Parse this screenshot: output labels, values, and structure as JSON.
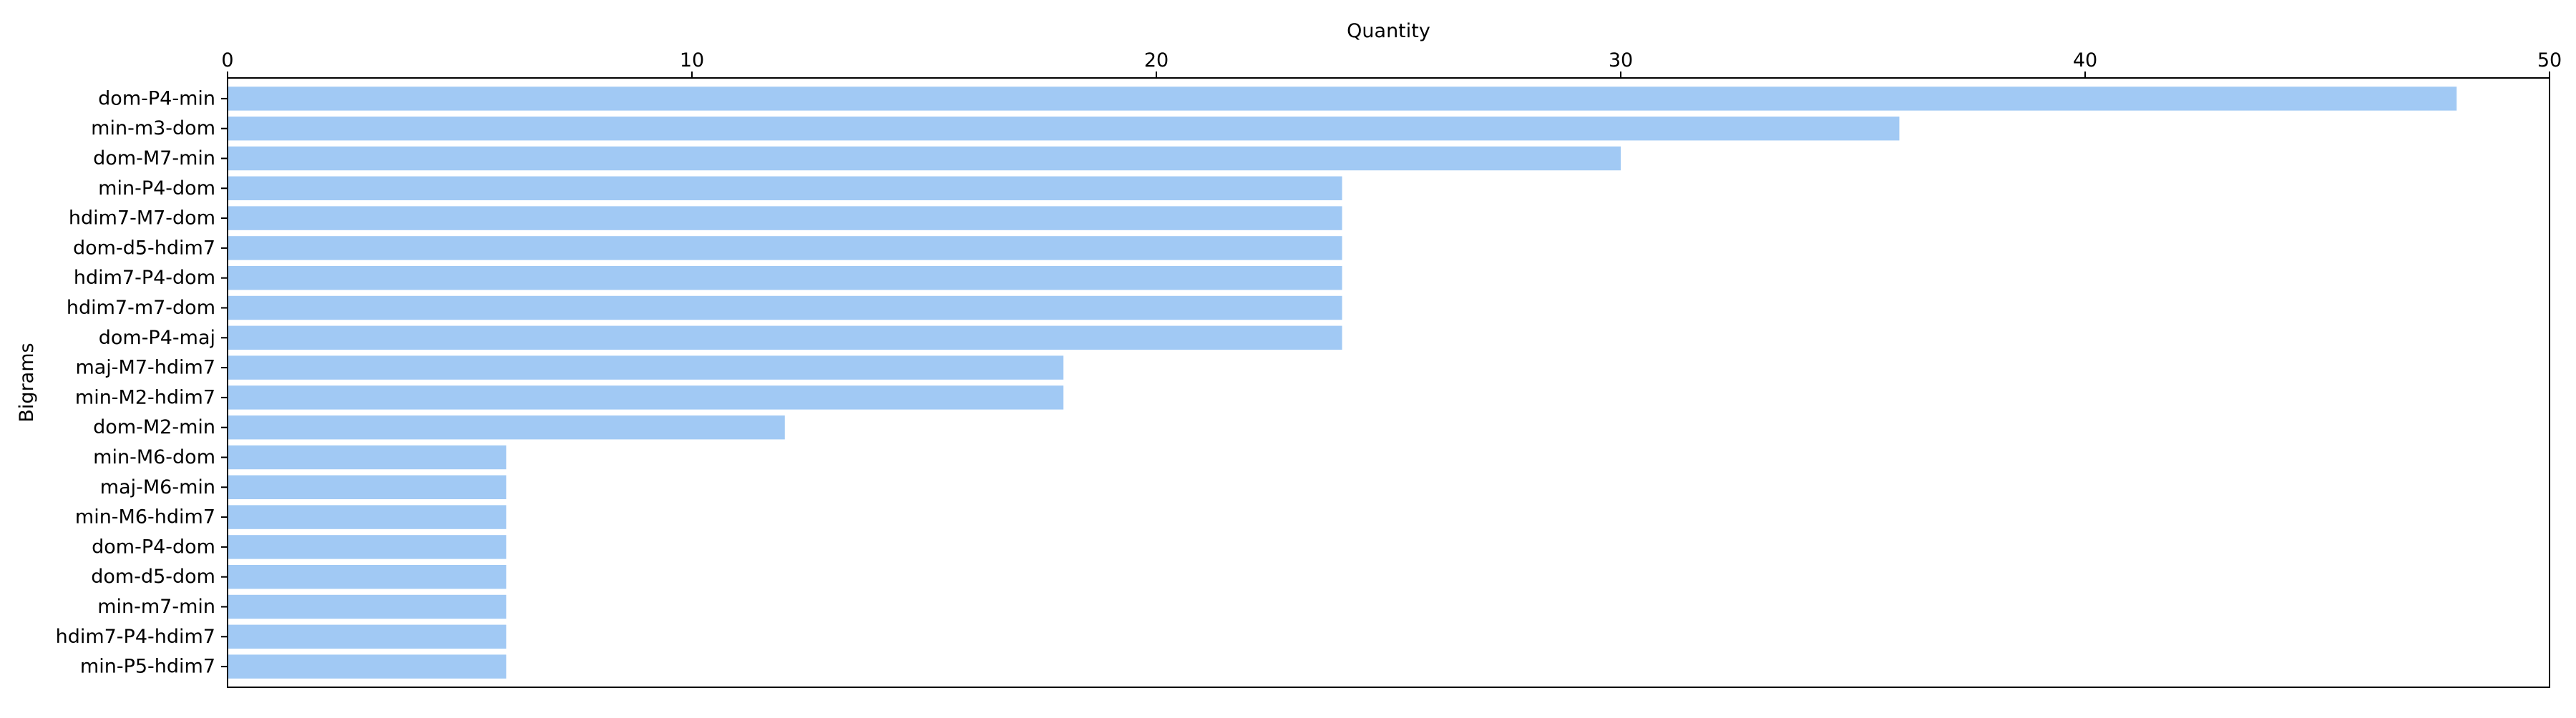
{
  "chart_data": {
    "type": "bar",
    "orientation": "horizontal",
    "title": "",
    "xlabel": "Quantity",
    "ylabel": "Bigrams",
    "x_axis_position": "top",
    "xlim": [
      0,
      50
    ],
    "xticks": [
      0,
      10,
      20,
      30,
      40,
      50
    ],
    "grid": false,
    "bar_color": "#a1c9f4",
    "categories": [
      "dom-P4-min",
      "min-m3-dom",
      "dom-M7-min",
      "min-P4-dom",
      "hdim7-M7-dom",
      "dom-d5-hdim7",
      "hdim7-P4-dom",
      "hdim7-m7-dom",
      "dom-P4-maj",
      "maj-M7-hdim7",
      "min-M2-hdim7",
      "dom-M2-min",
      "min-M6-dom",
      "maj-M6-min",
      "min-M6-hdim7",
      "dom-P4-dom",
      "dom-d5-dom",
      "min-m7-min",
      "hdim7-P4-hdim7",
      "min-P5-hdim7"
    ],
    "values": [
      48,
      36,
      30,
      24,
      24,
      24,
      24,
      24,
      24,
      18,
      18,
      12,
      6,
      6,
      6,
      6,
      6,
      6,
      6,
      6
    ]
  }
}
